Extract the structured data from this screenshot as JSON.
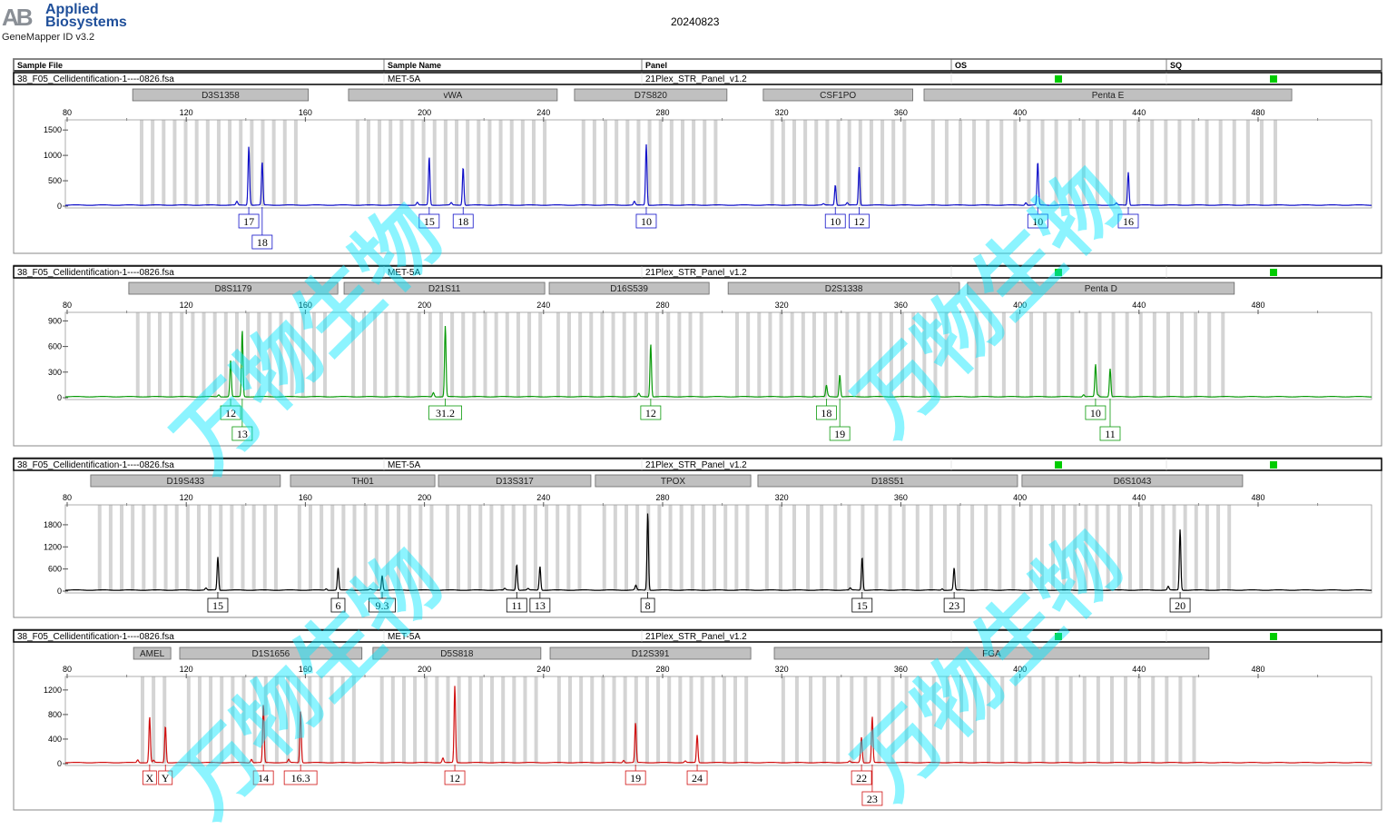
{
  "header": {
    "brand_logo": "AB",
    "brand_name_line1": "Applied",
    "brand_name_line2": "Biosystems",
    "software": "GeneMapper ID v3.2",
    "date": "20240823"
  },
  "table_headers": {
    "sample_file": "Sample File",
    "sample_name": "Sample Name",
    "panel": "Panel",
    "os": "OS",
    "sq": "SQ"
  },
  "watermark": "万物生物",
  "colors": {
    "blue": "#1010c8",
    "green": "#0a9a0a",
    "black": "#000000",
    "red": "#d01010",
    "bin": "#d4d4d4",
    "marker": "#c0c0c0",
    "status_ok": "#00cc00"
  },
  "chart_data": [
    {
      "type": "line",
      "sample_file": "38_F05_Cellidentification-1----0826.fsa",
      "sample_name": "MET-5A",
      "panel": "21Plex_STR_Panel_v1.2",
      "os_status": "green",
      "sq_status": "green",
      "dye_color": "blue",
      "x_ticks": [
        "80",
        "120",
        "160",
        "200",
        "240",
        "280",
        "320",
        "360",
        "400",
        "440",
        "480"
      ],
      "y_ticks": [
        "0",
        "500",
        "1000",
        "1500"
      ],
      "xlim": [
        80,
        518
      ],
      "ylim": [
        0,
        1700
      ],
      "markers": [
        {
          "name": "D3S1358",
          "range": [
            102,
            161
          ]
        },
        {
          "name": "vWA",
          "range": [
            174.5,
            244.6
          ]
        },
        {
          "name": "D7S820",
          "range": [
            250.4,
            301.6
          ]
        },
        {
          "name": "CSF1PO",
          "range": [
            313.8,
            364
          ]
        },
        {
          "name": "Penta E",
          "range": [
            367.8,
            491.3
          ]
        }
      ],
      "peaks": [
        {
          "size": 141,
          "height": 1150,
          "allele": "17"
        },
        {
          "size": 145.5,
          "height": 850,
          "allele": "18"
        },
        {
          "size": 201.6,
          "height": 950,
          "allele": "15"
        },
        {
          "size": 213,
          "height": 750,
          "allele": "18"
        },
        {
          "size": 274.5,
          "height": 1200,
          "allele": "10"
        },
        {
          "size": 338,
          "height": 400,
          "allele": "10"
        },
        {
          "size": 346,
          "height": 750,
          "allele": "12"
        },
        {
          "size": 406,
          "height": 850,
          "allele": "10"
        },
        {
          "size": 436.4,
          "height": 650,
          "allele": "16"
        }
      ]
    },
    {
      "type": "line",
      "sample_file": "38_F05_Cellidentification-1----0826.fsa",
      "sample_name": "MET-5A",
      "panel": "21Plex_STR_Panel_v1.2",
      "os_status": "green",
      "sq_status": "green",
      "dye_color": "green",
      "x_ticks": [
        "80",
        "120",
        "160",
        "200",
        "240",
        "280",
        "320",
        "360",
        "400",
        "440",
        "480"
      ],
      "y_ticks": [
        "0",
        "300",
        "600",
        "900"
      ],
      "xlim": [
        80,
        518
      ],
      "ylim": [
        0,
        1000
      ],
      "markers": [
        {
          "name": "D8S1179",
          "range": [
            100.7,
            170.9
          ]
        },
        {
          "name": "D21S11",
          "range": [
            173,
            240.4
          ]
        },
        {
          "name": "D16S539",
          "range": [
            241.9,
            295.6
          ]
        },
        {
          "name": "D2S1338",
          "range": [
            302,
            379.7
          ]
        },
        {
          "name": "Penta D",
          "range": [
            382.4,
            472
          ]
        }
      ],
      "peaks": [
        {
          "size": 134.9,
          "height": 380,
          "allele": "12"
        },
        {
          "size": 138.8,
          "height": 780,
          "allele": "13"
        },
        {
          "size": 207,
          "height": 830,
          "allele": "31.2"
        },
        {
          "size": 276,
          "height": 620,
          "allele": "12"
        },
        {
          "size": 335,
          "height": 130,
          "allele": "18"
        },
        {
          "size": 339.5,
          "height": 260,
          "allele": "19"
        },
        {
          "size": 425.4,
          "height": 380,
          "allele": "10"
        },
        {
          "size": 430.3,
          "height": 330,
          "allele": "11"
        }
      ]
    },
    {
      "type": "line",
      "sample_file": "38_F05_Cellidentification-1----0826.fsa",
      "sample_name": "MET-5A",
      "panel": "21Plex_STR_Panel_v1.2",
      "os_status": "green",
      "sq_status": "green",
      "dye_color": "black",
      "x_ticks": [
        "80",
        "120",
        "160",
        "200",
        "240",
        "280",
        "320",
        "360",
        "400",
        "440",
        "480"
      ],
      "y_ticks": [
        "0",
        "600",
        "1200",
        "1800"
      ],
      "xlim": [
        80,
        518
      ],
      "ylim": [
        0,
        2340
      ],
      "markers": [
        {
          "name": "D19S433",
          "range": [
            87.9,
            151.6
          ]
        },
        {
          "name": "TH01",
          "range": [
            155,
            203.5
          ]
        },
        {
          "name": "D13S317",
          "range": [
            204.7,
            255.9
          ]
        },
        {
          "name": "TPOX",
          "range": [
            257.4,
            309.6
          ]
        },
        {
          "name": "D18S51",
          "range": [
            312,
            399.2
          ]
        },
        {
          "name": "D6S1043",
          "range": [
            400.7,
            474.8
          ]
        }
      ],
      "peaks": [
        {
          "size": 130.6,
          "height": 900,
          "allele": "15"
        },
        {
          "size": 171,
          "height": 600,
          "allele": "6"
        },
        {
          "size": 185.8,
          "height": 400,
          "allele": "9.3"
        },
        {
          "size": 231,
          "height": 700,
          "allele": "11"
        },
        {
          "size": 238.8,
          "height": 650,
          "allele": "13"
        },
        {
          "size": 275,
          "height": 2100,
          "allele": "8"
        },
        {
          "size": 347,
          "height": 900,
          "allele": "15"
        },
        {
          "size": 377.9,
          "height": 600,
          "allele": "23"
        },
        {
          "size": 453.8,
          "height": 1650,
          "allele": "20"
        }
      ]
    },
    {
      "type": "line",
      "sample_file": "38_F05_Cellidentification-1----0826.fsa",
      "sample_name": "MET-5A",
      "panel": "21Plex_STR_Panel_v1.2",
      "os_status": "green",
      "sq_status": "green",
      "dye_color": "red",
      "x_ticks": [
        "80",
        "120",
        "160",
        "200",
        "240",
        "280",
        "320",
        "360",
        "400",
        "440",
        "480"
      ],
      "y_ticks": [
        "0",
        "400",
        "800",
        "1200"
      ],
      "xlim": [
        80,
        518
      ],
      "ylim": [
        0,
        1420
      ],
      "markers": [
        {
          "name": "AMEL",
          "range": [
            102.3,
            114.8
          ]
        },
        {
          "name": "D1S1656",
          "range": [
            117.8,
            179
          ]
        },
        {
          "name": "D5S818",
          "range": [
            182.7,
            239.1
          ]
        },
        {
          "name": "D12S391",
          "range": [
            242.2,
            309.6
          ]
        },
        {
          "name": "FGA",
          "range": [
            317.5,
            463.5
          ]
        }
      ],
      "peaks": [
        {
          "size": 107.7,
          "height": 750,
          "allele": "X"
        },
        {
          "size": 113,
          "height": 600,
          "allele": "Y"
        },
        {
          "size": 145.9,
          "height": 950,
          "allele": "14"
        },
        {
          "size": 158.4,
          "height": 850,
          "allele": "16.3"
        },
        {
          "size": 210.2,
          "height": 1250,
          "allele": "12"
        },
        {
          "size": 270.9,
          "height": 650,
          "allele": "19"
        },
        {
          "size": 291.6,
          "height": 450,
          "allele": "24"
        },
        {
          "size": 346.8,
          "height": 400,
          "allele": "22"
        },
        {
          "size": 350.4,
          "height": 750,
          "allele": "23"
        }
      ]
    }
  ]
}
